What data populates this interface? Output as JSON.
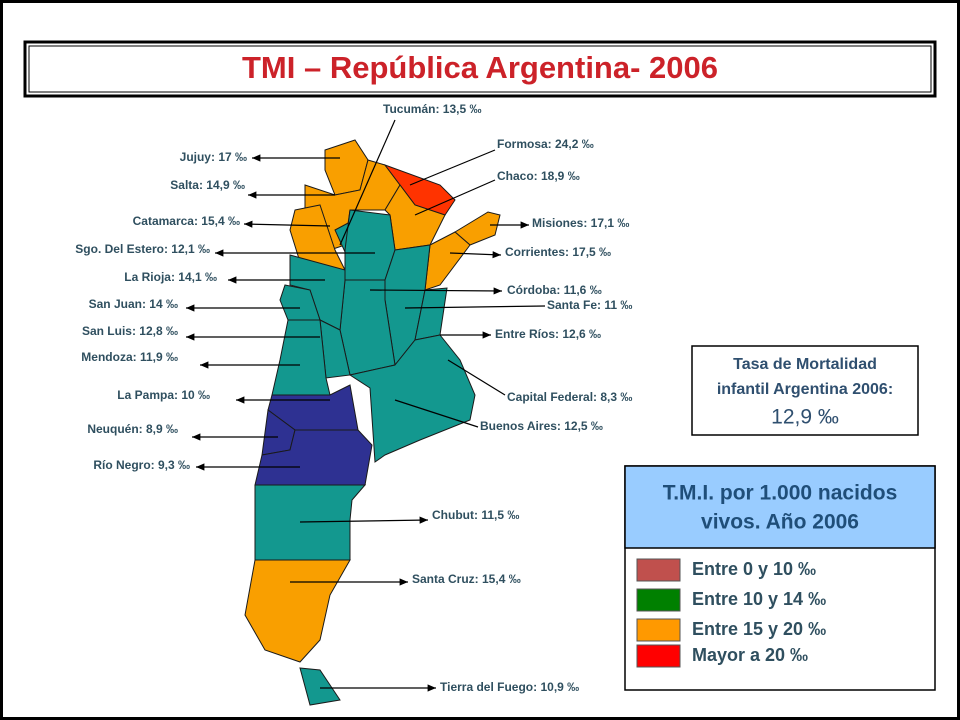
{
  "header": {
    "title": "TMI – República Argentina- 2006"
  },
  "provinces": [
    "Tucumán: 13,5 ‰",
    "Jujuy: 17 ‰",
    "Salta: 14,9 ‰",
    "Catamarca: 15,4 ‰",
    "Sgo. Del Estero: 12,1 ‰",
    "La Rioja: 14,1 ‰",
    "San Juan: 14 ‰",
    "San Luis: 12,8 ‰",
    "Mendoza: 11,9 ‰",
    "La Pampa: 10 ‰",
    "Neuquén: 8,9 ‰",
    "Río Negro: 9,3 ‰",
    "Formosa: 24,2 ‰",
    "Chaco: 18,9 ‰",
    "Misiones: 17,1 ‰",
    "Corrientes: 17,5 ‰",
    "Córdoba: 11,6 ‰",
    "Santa Fe: 11 ‰",
    "Entre Ríos: 12,6 ‰",
    "Capital Federal: 8,3 ‰",
    "Buenos Aires: 12,5 ‰",
    "Chubut: 11,5 ‰",
    "Santa Cruz: 15,4 ‰",
    "Tierra del Fuego: 10,9 ‰"
  ],
  "info_box": {
    "lines": [
      "Tasa de Mortalidad",
      "infantil Argentina 2006:"
    ],
    "value": "12,9 ‰"
  },
  "legend": {
    "title_lines": [
      "T.M.I. por 1.000 nacidos",
      "vivos. Año 2006"
    ],
    "items": [
      {
        "label": "Entre 0 y 10 ‰",
        "color": "#c0504d"
      },
      {
        "label": "Entre 10 y 14 ‰",
        "color": "#008000"
      },
      {
        "label": "Entre 15 y 20 ‰",
        "color": "#ff9900"
      },
      {
        "label": "Mayor a 20 ‰",
        "color": "#ff0000"
      }
    ]
  }
}
